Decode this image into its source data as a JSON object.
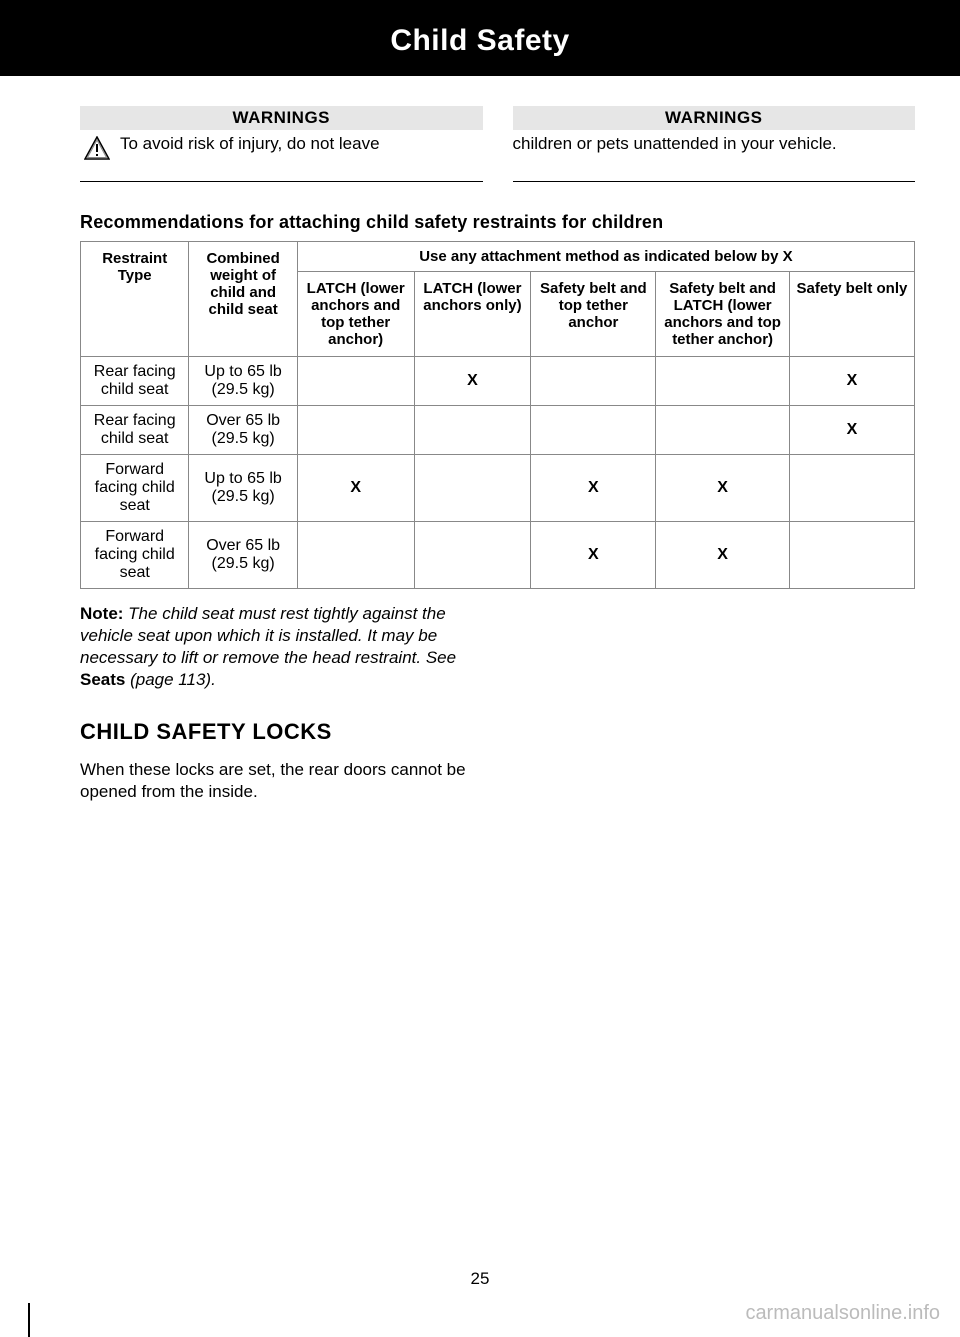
{
  "header": {
    "title": "Child Safety"
  },
  "warnings": {
    "heading": "WARNINGS",
    "left_text": "To avoid risk of injury, do not leave",
    "right_text": "children or pets unattended in your vehicle."
  },
  "recommendations": {
    "title": "Recommendations for attaching child safety restraints for children",
    "span_header": "Use any attachment method as indicated below by X",
    "columns": {
      "restraint": "Restraint Type",
      "weight": "Combined weight of child and child seat",
      "latch_full": "LATCH (lower anchors and top tether anchor)",
      "latch_lower": "LATCH (lower anchors only)",
      "belt_tether": "Safety belt and top tether anchor",
      "belt_latch": "Safety belt and LATCH (lower anchors and top tether anchor)",
      "belt_only": "Safety belt only"
    },
    "rows": [
      {
        "restraint": "Rear facing child seat",
        "weight": "Up to 65 lb (29.5 kg)",
        "latch_full": "",
        "latch_lower": "X",
        "belt_tether": "",
        "belt_latch": "",
        "belt_only": "X"
      },
      {
        "restraint": "Rear facing child seat",
        "weight": "Over 65 lb (29.5 kg)",
        "latch_full": "",
        "latch_lower": "",
        "belt_tether": "",
        "belt_latch": "",
        "belt_only": "X"
      },
      {
        "restraint": "Forward facing child seat",
        "weight": "Up to 65 lb (29.5 kg)",
        "latch_full": "X",
        "latch_lower": "",
        "belt_tether": "X",
        "belt_latch": "X",
        "belt_only": ""
      },
      {
        "restraint": "Forward facing child seat",
        "weight": "Over 65 lb (29.5 kg)",
        "latch_full": "",
        "latch_lower": "",
        "belt_tether": "X",
        "belt_latch": "X",
        "belt_only": ""
      }
    ],
    "column_widths": [
      "13%",
      "13%",
      "14%",
      "14%",
      "15%",
      "16%",
      "15%"
    ]
  },
  "note": {
    "label": "Note:",
    "body_pre": " The child seat must rest tightly against the vehicle seat upon which it is installed. It may be necessary to lift or remove the head restraint.  See ",
    "seats_ref": "Seats",
    "body_post": " (page 113)."
  },
  "section": {
    "heading": "CHILD SAFETY LOCKS",
    "body": "When these locks are set, the rear doors cannot be opened from the inside."
  },
  "page_number": "25",
  "watermark": "carmanualsonline.info",
  "colors": {
    "border": "#888888",
    "warn_bg": "#e6e6e6",
    "watermark": "#bbbbbb"
  }
}
